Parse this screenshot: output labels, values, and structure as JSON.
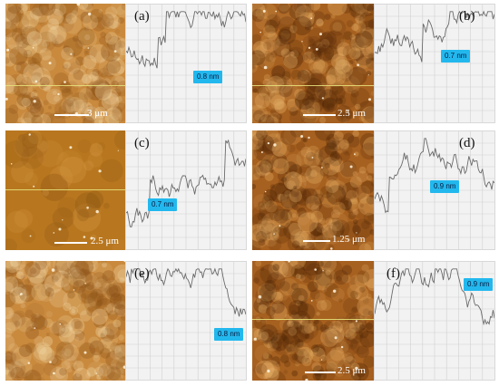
{
  "figure": {
    "panels": [
      {
        "id": "a",
        "letter": "(a)",
        "scale": "3 μm",
        "height": "0.8 nm",
        "tone": "light"
      },
      {
        "id": "b",
        "letter": "(b)",
        "scale": "2.5 μm",
        "height": "0.7 nm",
        "tone": "dark"
      },
      {
        "id": "c",
        "letter": "(c)",
        "scale": "2.5 μm",
        "height": "0.7 nm",
        "tone": "smooth"
      },
      {
        "id": "d",
        "letter": "(d)",
        "scale": "1.25 μm",
        "height": "0.9 nm",
        "tone": "dark"
      },
      {
        "id": "e",
        "letter": "(e)",
        "scale": "",
        "height": "0.8 nm",
        "tone": "light"
      },
      {
        "id": "f",
        "letter": "(f)",
        "scale": "2.5 μm",
        "height": "0.9 nm",
        "tone": "dark"
      }
    ]
  }
}
